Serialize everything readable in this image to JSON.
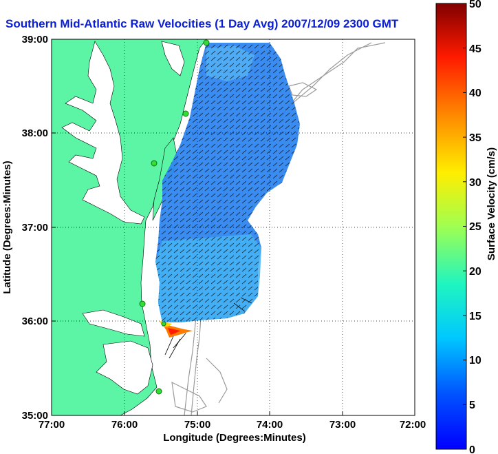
{
  "title": "Southern Mid-Atlantic Raw Velocities (1 Day Avg) 2007/12/09 2300 GMT",
  "axes": {
    "xlabel": "Longitude (Degrees:Minutes)",
    "ylabel": "Latitude (Degrees:Minutes)",
    "xticks": [
      "77:00",
      "76:00",
      "75:00",
      "74:00",
      "73:00",
      "72:00"
    ],
    "yticks": [
      "39:00",
      "38:00",
      "37:00",
      "36:00",
      "35:00"
    ],
    "grid": "dotted"
  },
  "colorbar": {
    "label": "Surface Velocity (cm/s)",
    "ticks": [
      "50",
      "45",
      "40",
      "35",
      "30",
      "25",
      "20",
      "15",
      "10",
      "5",
      "0"
    ],
    "min": 0,
    "max": 50,
    "colormap": "jet"
  },
  "colors": {
    "land": "#5cf5a6",
    "title": "#0a1ed6",
    "contour": "#9a9a9a",
    "station": "#33dd33",
    "field_main": "#2f86f0",
    "field_edge": "#45b4f5"
  },
  "markers": {
    "stations": 6
  }
}
